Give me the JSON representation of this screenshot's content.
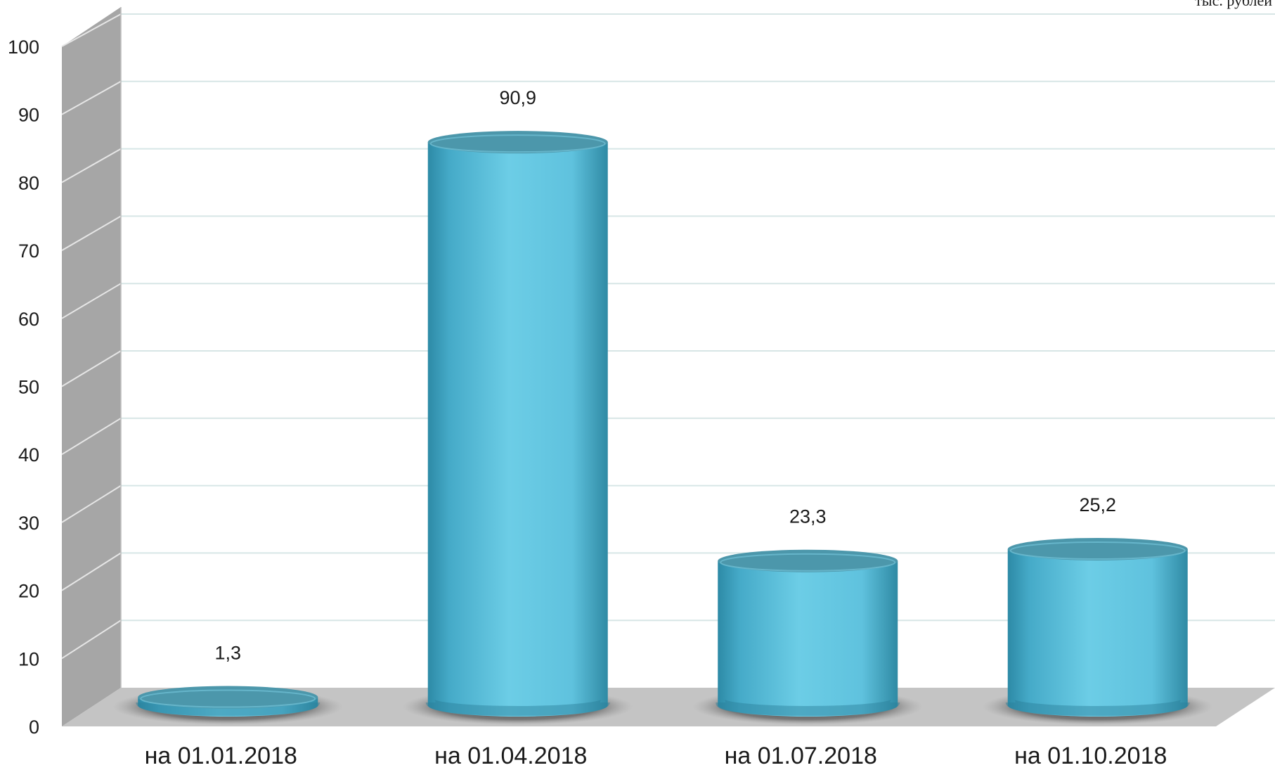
{
  "chart_data": {
    "type": "bar",
    "style": "3d-cylinder",
    "unit_note": "тыс. рублей",
    "categories": [
      "на 01.01.2018",
      "на 01.04.2018",
      "на 01.07.2018",
      "на 01.10.2018"
    ],
    "values": [
      1.3,
      90.9,
      23.3,
      25.2
    ],
    "data_labels": [
      "1,3",
      "90,9",
      "23,3",
      "25,2"
    ],
    "ylim": [
      0,
      100
    ],
    "yticks": [
      0,
      10,
      20,
      30,
      40,
      50,
      60,
      70,
      80,
      90,
      100
    ],
    "grid": true,
    "legend": "none",
    "colors": {
      "bar": "#4fb8d6",
      "bar_dark": "#2b7f99",
      "bar_top": "#4c97ab",
      "floor": "#c4c4c4",
      "side_wall": "#a6a6a6",
      "grid": "#d7e6e6"
    }
  }
}
